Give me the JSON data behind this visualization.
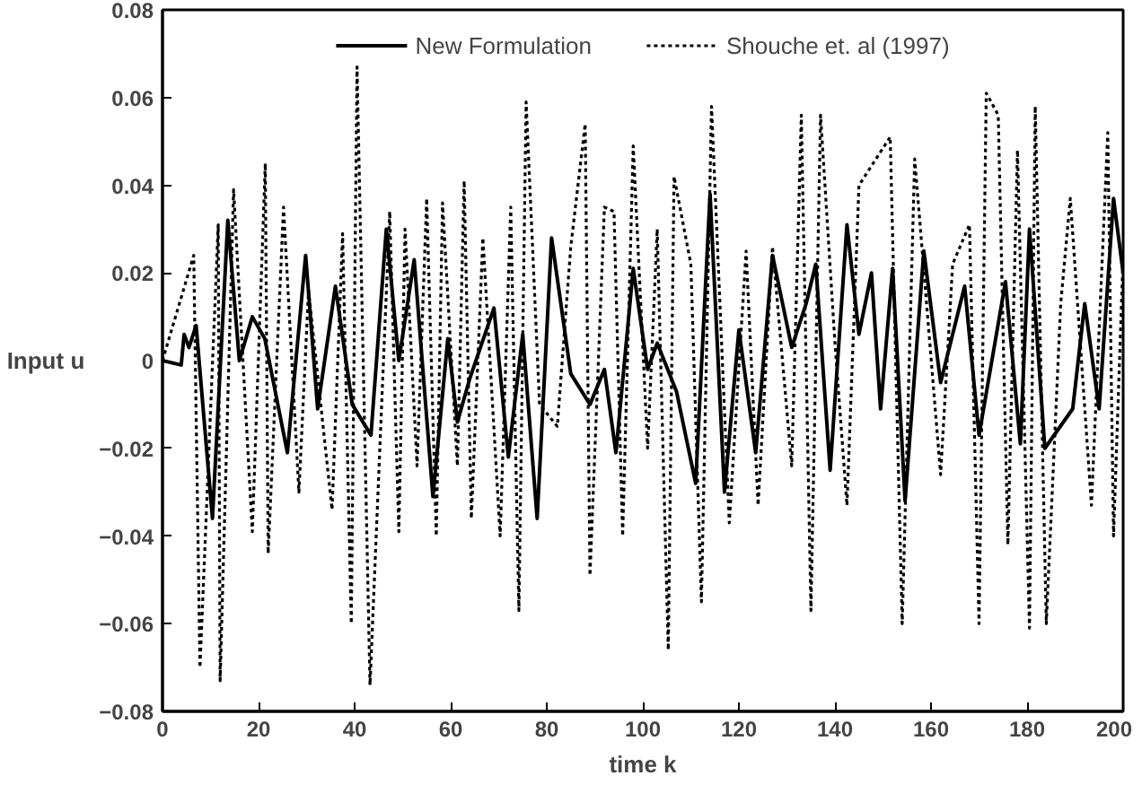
{
  "chart_data": {
    "type": "line",
    "xlabel": "time k",
    "ylabel": "Input u",
    "xlim": [
      0,
      200
    ],
    "ylim": [
      -0.08,
      0.08
    ],
    "xticks": [
      0,
      20,
      40,
      60,
      80,
      100,
      120,
      140,
      160,
      180,
      200
    ],
    "yticks": [
      -0.08,
      -0.06,
      -0.04,
      -0.02,
      0,
      0.02,
      0.04,
      0.06,
      0.08
    ],
    "grid": false,
    "legend": "top",
    "marker": "none",
    "series": [
      {
        "name": "New Formulation",
        "color": "#000000",
        "line_style": "solid",
        "x": [
          0,
          3.9,
          4.5,
          5.5,
          7,
          10.4,
          13.6,
          16,
          18.7,
          21.3,
          26,
          29.8,
          32.3,
          36,
          39.5,
          43.4,
          46.6,
          49.2,
          52.4,
          56.3,
          59.4,
          61.4,
          64,
          69,
          72,
          75,
          78,
          81,
          85,
          89,
          92,
          94.4,
          98,
          101,
          103,
          107,
          111,
          114,
          117,
          120,
          123.5,
          127,
          131,
          134,
          136,
          139,
          142.5,
          145,
          147.6,
          149.5,
          152,
          154.6,
          158.5,
          162,
          167,
          170,
          175.5,
          178.6,
          180.5,
          183.7,
          189.5,
          192,
          195,
          198,
          200
        ],
        "values": [
          0,
          -0.001,
          0.006,
          0.003,
          0.008,
          -0.036,
          0.032,
          0.0,
          0.01,
          0.005,
          -0.021,
          0.024,
          -0.011,
          0.017,
          -0.01,
          -0.017,
          0.03,
          0.0,
          0.023,
          -0.031,
          0.005,
          -0.014,
          -0.004,
          0.012,
          -0.022,
          0.006,
          -0.036,
          0.028,
          -0.003,
          -0.01,
          -0.002,
          -0.021,
          0.021,
          -0.002,
          0.004,
          -0.007,
          -0.028,
          0.038,
          -0.03,
          0.007,
          -0.021,
          0.024,
          0.003,
          0.013,
          0.022,
          -0.025,
          0.031,
          0.006,
          0.02,
          -0.011,
          0.021,
          -0.032,
          0.025,
          -0.005,
          0.017,
          -0.017,
          0.018,
          -0.019,
          0.03,
          -0.02,
          -0.011,
          0.013,
          -0.011,
          0.037,
          0.02
        ]
      },
      {
        "name": "Shouche et. al (1997)",
        "color": "#000000",
        "line_style": "dotted",
        "x": [
          0,
          6.5,
          7.8,
          11.6,
          12,
          14.8,
          18.7,
          21.4,
          22,
          25.2,
          28.4,
          30.4,
          35.3,
          37.5,
          39.3,
          40.5,
          43.2,
          47.3,
          49.2,
          50.5,
          53,
          55,
          57,
          58.3,
          61.4,
          62.8,
          64.3,
          66.7,
          70.3,
          72.5,
          74.2,
          75.7,
          78.5,
          82.2,
          85,
          88,
          89,
          92,
          94,
          95.8,
          98,
          101,
          103,
          105.3,
          106.5,
          110,
          112.2,
          114.3,
          118,
          121.5,
          124,
          127,
          131,
          133,
          135,
          137,
          140,
          142.5,
          145,
          151.5,
          154,
          156.6,
          162,
          164.5,
          168,
          170,
          171.5,
          174,
          176,
          178,
          180.5,
          181.7,
          184,
          187,
          189,
          193.4,
          196.8,
          198,
          200
        ],
        "values": [
          0,
          0.024,
          -0.07,
          0.031,
          -0.073,
          0.039,
          -0.039,
          0.045,
          -0.044,
          0.035,
          -0.03,
          0.016,
          -0.034,
          0.029,
          -0.06,
          0.067,
          -0.074,
          0.034,
          -0.039,
          0.03,
          -0.024,
          0.037,
          -0.04,
          0.036,
          -0.024,
          0.041,
          -0.036,
          0.028,
          -0.04,
          0.035,
          -0.057,
          0.059,
          -0.01,
          -0.015,
          0.026,
          0.054,
          -0.049,
          0.035,
          0.034,
          -0.04,
          0.049,
          -0.02,
          0.03,
          -0.066,
          0.042,
          0.022,
          -0.055,
          0.058,
          -0.037,
          0.025,
          -0.033,
          0.026,
          -0.024,
          0.056,
          -0.057,
          0.056,
          0.004,
          -0.033,
          0.04,
          0.051,
          -0.06,
          0.046,
          -0.026,
          0.022,
          0.031,
          -0.06,
          0.061,
          0.056,
          -0.042,
          0.048,
          -0.061,
          0.058,
          -0.06,
          0.013,
          0.037,
          -0.033,
          0.052,
          -0.04,
          0.024
        ]
      }
    ]
  }
}
